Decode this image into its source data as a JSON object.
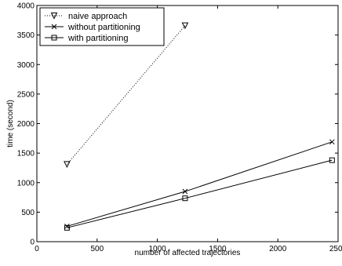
{
  "chart_data": {
    "type": "line",
    "title": "",
    "xlabel": "number of affected trajectories",
    "ylabel": "time (second)",
    "xlim": [
      0,
      2500
    ],
    "ylim": [
      0,
      4000
    ],
    "xticks": [
      0,
      500,
      1000,
      1500,
      2000,
      2500
    ],
    "yticks": [
      0,
      500,
      1000,
      1500,
      2000,
      2500,
      3000,
      3500,
      4000
    ],
    "grid": false,
    "legend_position": "top-left",
    "series": [
      {
        "name": "naive approach",
        "marker": "triangle-down",
        "line_style": "dotted",
        "color": "#000000",
        "x": [
          250,
          1230
        ],
        "y": [
          1310,
          3660
        ]
      },
      {
        "name": "without partitioning",
        "marker": "x",
        "line_style": "solid",
        "color": "#000000",
        "x": [
          250,
          1230,
          2450
        ],
        "y": [
          260,
          850,
          1690
        ]
      },
      {
        "name": "with partitioning",
        "marker": "square",
        "line_style": "solid",
        "color": "#000000",
        "x": [
          250,
          1230,
          2450
        ],
        "y": [
          235,
          735,
          1380
        ]
      }
    ]
  }
}
